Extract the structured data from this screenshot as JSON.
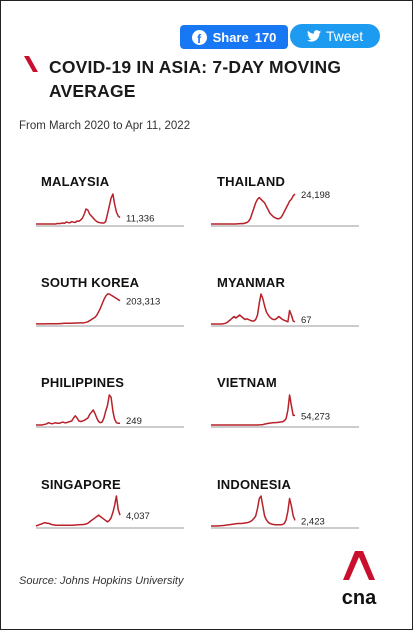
{
  "share": {
    "label": "Share",
    "count": "170",
    "icon": "facebook-icon",
    "color": "#1877f2"
  },
  "tweet": {
    "label": "Tweet",
    "icon": "twitter-bird-icon",
    "color": "#1d9bf0"
  },
  "title": "COVID-19 IN ASIA: 7-DAY MOVING AVERAGE",
  "subtitle": "From March 2020 to Apr 11, 2022",
  "source": "Source: Johns Hopkins University",
  "logo": {
    "text": "cna",
    "accent_color": "#c8102e"
  },
  "line_color": "#b8202a",
  "chart_data": [
    {
      "type": "line",
      "title": "MALAYSIA",
      "last_value": 11336,
      "last_label": "11,336",
      "values": [
        0,
        0,
        0,
        0,
        0,
        0,
        0,
        0,
        0,
        0,
        0,
        0,
        0.3,
        0.2,
        0.3,
        0.5,
        0.4,
        1,
        0.7,
        0.6,
        1.2,
        0.9,
        0.8,
        1.5,
        1.4,
        2,
        3,
        5,
        7.5,
        7,
        5,
        4,
        3,
        2,
        1.2,
        0.8,
        0.6,
        0.5,
        0.5,
        1.2,
        5,
        9,
        13,
        15,
        10,
        6,
        4,
        3.2
      ]
    },
    {
      "type": "line",
      "title": "THAILAND",
      "last_value": 24198,
      "last_label": "24,198",
      "values": [
        0,
        0,
        0,
        0,
        0,
        0,
        0,
        0,
        0,
        0,
        0,
        0,
        0,
        0,
        0,
        0.1,
        0.1,
        0.3,
        0.2,
        0.5,
        0.8,
        1.5,
        3,
        6,
        9,
        12,
        14,
        15,
        14,
        13,
        12,
        10,
        8,
        6,
        5,
        4,
        3.5,
        3,
        3,
        3.5,
        5,
        7,
        9,
        11,
        13,
        14,
        16,
        17
      ]
    },
    {
      "type": "line",
      "title": "SOUTH KOREA",
      "last_value": 203313,
      "last_label": "203,313",
      "values": [
        0.2,
        0.1,
        0.1,
        0.1,
        0.1,
        0.1,
        0.2,
        0.2,
        0.3,
        0.3,
        0.3,
        0.3,
        0.3,
        0.4,
        0.4,
        0.5,
        0.6,
        0.6,
        0.7,
        0.7,
        0.8,
        0.8,
        0.9,
        0.9,
        1,
        1,
        1,
        1.2,
        1.5,
        2,
        3,
        4,
        5,
        6,
        8,
        11,
        14,
        18,
        22,
        25,
        27,
        27,
        26,
        25,
        24,
        23,
        22,
        21
      ]
    },
    {
      "type": "line",
      "title": "MYANMAR",
      "last_value": 67,
      "last_label": "67",
      "values": [
        0,
        0,
        0,
        0,
        0,
        0,
        0,
        0.2,
        0.5,
        1,
        2,
        3,
        4,
        5,
        4,
        5,
        6,
        5,
        4,
        3,
        3.5,
        3,
        2.5,
        2,
        2,
        3,
        6,
        14,
        20,
        17,
        12,
        8,
        6,
        4.5,
        3.5,
        3,
        3,
        4,
        5,
        4,
        3,
        2.5,
        2,
        1.5,
        9,
        6,
        2,
        1.5
      ]
    },
    {
      "type": "line",
      "title": "PHILIPPINES",
      "last_value": 249,
      "last_label": "249",
      "values": [
        0,
        0,
        0,
        0,
        0.3,
        0.6,
        1,
        2,
        1.5,
        1,
        1.5,
        2,
        1.5,
        1.5,
        2,
        2.5,
        2,
        2,
        2.5,
        3,
        3.5,
        6,
        8,
        6,
        3.5,
        3,
        3.5,
        4,
        5,
        6,
        9,
        11,
        13,
        10,
        6,
        3,
        2,
        2.5,
        6,
        12,
        17,
        26,
        24,
        12,
        5,
        2,
        1.5,
        1.5
      ]
    },
    {
      "type": "line",
      "title": "VIETNAM",
      "last_value": 54273,
      "last_label": "54,273",
      "values": [
        0,
        0,
        0,
        0,
        0,
        0,
        0,
        0,
        0,
        0,
        0,
        0,
        0,
        0,
        0,
        0,
        0,
        0,
        0,
        0,
        0,
        0,
        0,
        0,
        0,
        0,
        0,
        0.1,
        0.2,
        0.4,
        0.8,
        1.2,
        1.5,
        1.8,
        2,
        2.2,
        2.2,
        2.3,
        2.5,
        2.8,
        3,
        4,
        6,
        14,
        28,
        18,
        9,
        9
      ]
    },
    {
      "type": "line",
      "title": "SINGAPORE",
      "last_value": 4037,
      "last_label": "4,037",
      "values": [
        0,
        0.5,
        1,
        1.5,
        2,
        2.5,
        2,
        2,
        1.5,
        1,
        0.8,
        0.6,
        0.5,
        0.5,
        0.5,
        0.5,
        0.5,
        0.5,
        0.5,
        0.5,
        0.6,
        0.6,
        0.7,
        0.8,
        0.9,
        1,
        1,
        1.2,
        1.5,
        2,
        3,
        4,
        5,
        6,
        7,
        8,
        7,
        6,
        5,
        4,
        3,
        4,
        6,
        10,
        15,
        22,
        12,
        8
      ]
    },
    {
      "type": "line",
      "title": "INDONESIA",
      "last_value": 2423,
      "last_label": "2,423",
      "values": [
        0,
        0,
        0,
        0,
        0.1,
        0.2,
        0.3,
        0.4,
        0.6,
        0.8,
        1,
        1.2,
        1.4,
        1.6,
        1.8,
        2,
        2,
        2,
        2.2,
        2.4,
        2.6,
        3,
        3.5,
        4.5,
        6,
        8,
        14,
        22,
        24,
        16,
        8,
        5,
        3,
        2,
        1.5,
        1.2,
        1,
        1,
        1,
        1,
        1.2,
        2,
        5,
        12,
        22,
        16,
        8,
        4.5
      ]
    }
  ]
}
